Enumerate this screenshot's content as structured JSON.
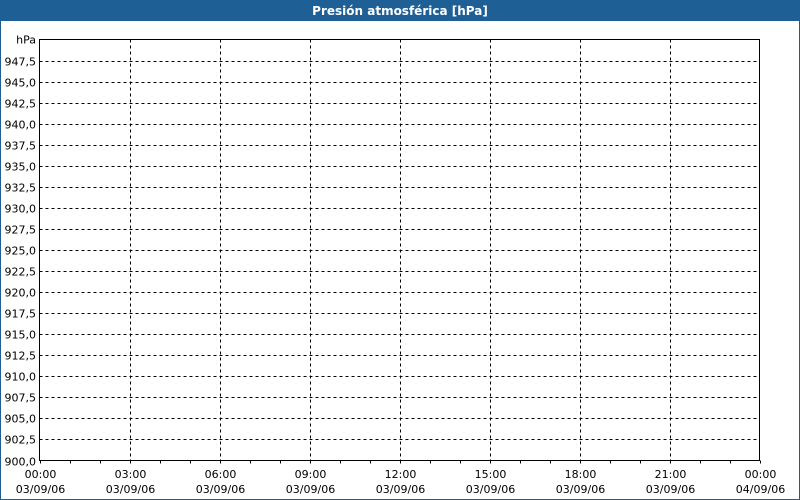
{
  "window": {
    "title": "Presión atmosférica [hPa]",
    "title_bar_color": "#1e6096"
  },
  "chart_data": {
    "type": "line",
    "title": "Presión atmosférica [hPa]",
    "ylabel": "hPa",
    "xlabel": "",
    "ylim": [
      900,
      950
    ],
    "y_ticks": [
      "947,5",
      "945,0",
      "942,5",
      "940,0",
      "937,5",
      "935,0",
      "932,5",
      "930,0",
      "927,5",
      "925,0",
      "922,5",
      "920,0",
      "917,5",
      "915,0",
      "912,5",
      "910,0",
      "907,5",
      "905,0",
      "902,5",
      "900,0"
    ],
    "x_ticks": [
      {
        "time": "00:00",
        "date": "03/09/06"
      },
      {
        "time": "03:00",
        "date": "03/09/06"
      },
      {
        "time": "06:00",
        "date": "03/09/06"
      },
      {
        "time": "09:00",
        "date": "03/09/06"
      },
      {
        "time": "12:00",
        "date": "03/09/06"
      },
      {
        "time": "15:00",
        "date": "03/09/06"
      },
      {
        "time": "18:00",
        "date": "03/09/06"
      },
      {
        "time": "21:00",
        "date": "03/09/06"
      },
      {
        "time": "00:00",
        "date": "04/09/06"
      }
    ],
    "xlim": [
      "03/09/06 00:00",
      "04/09/06 00:00"
    ],
    "grid": true,
    "series": []
  }
}
